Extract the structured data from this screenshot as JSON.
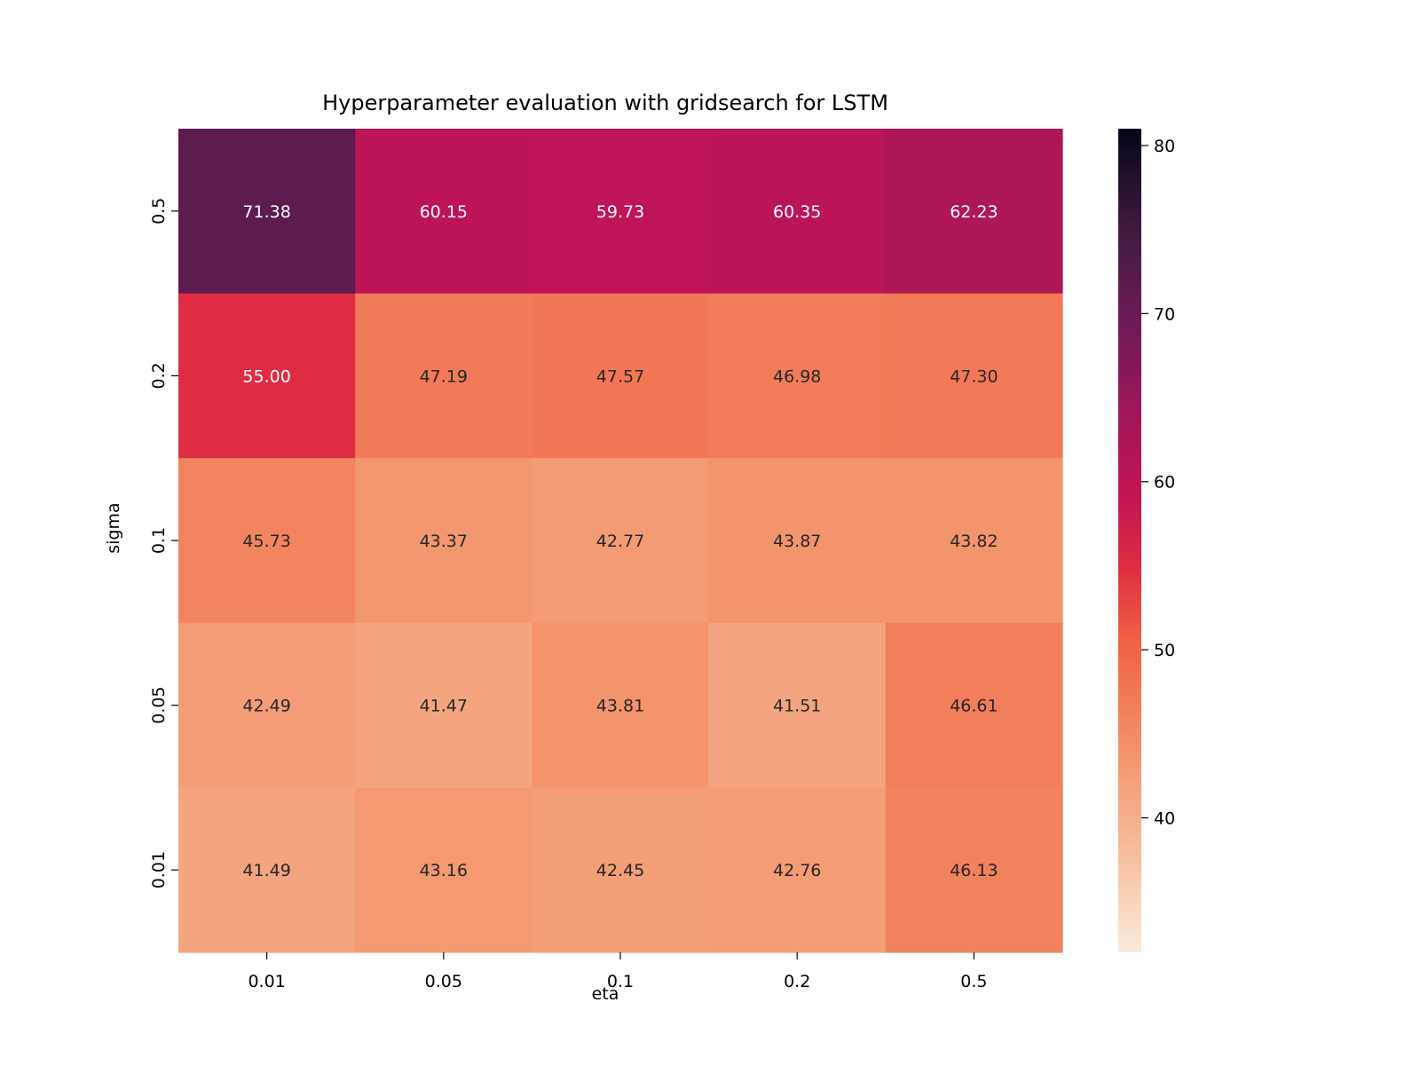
{
  "chart_data": {
    "type": "heatmap",
    "title": "Hyperparameter evaluation with gridsearch for LSTM",
    "xlabel": "eta",
    "ylabel": "sigma",
    "x_categories": [
      "0.01",
      "0.05",
      "0.1",
      "0.2",
      "0.5"
    ],
    "y_categories": [
      "0.5",
      "0.2",
      "0.1",
      "0.05",
      "0.01"
    ],
    "values": [
      [
        71.38,
        60.15,
        59.73,
        60.35,
        62.23
      ],
      [
        55.0,
        47.19,
        47.57,
        46.98,
        47.3
      ],
      [
        45.73,
        43.37,
        42.77,
        43.87,
        43.82
      ],
      [
        42.49,
        41.47,
        43.81,
        41.51,
        46.61
      ],
      [
        41.49,
        43.16,
        42.45,
        42.76,
        46.13
      ]
    ],
    "value_format": "0.00",
    "colorbar": {
      "range": [
        32,
        81
      ],
      "ticks": [
        40,
        50,
        60,
        70,
        80
      ],
      "colormap": "rocket_r",
      "placement": "right"
    },
    "annotations": true,
    "grid": false,
    "colors": {
      "annotation_light": "#ffffff",
      "annotation_dark": "#262626",
      "text": "#000000"
    }
  }
}
